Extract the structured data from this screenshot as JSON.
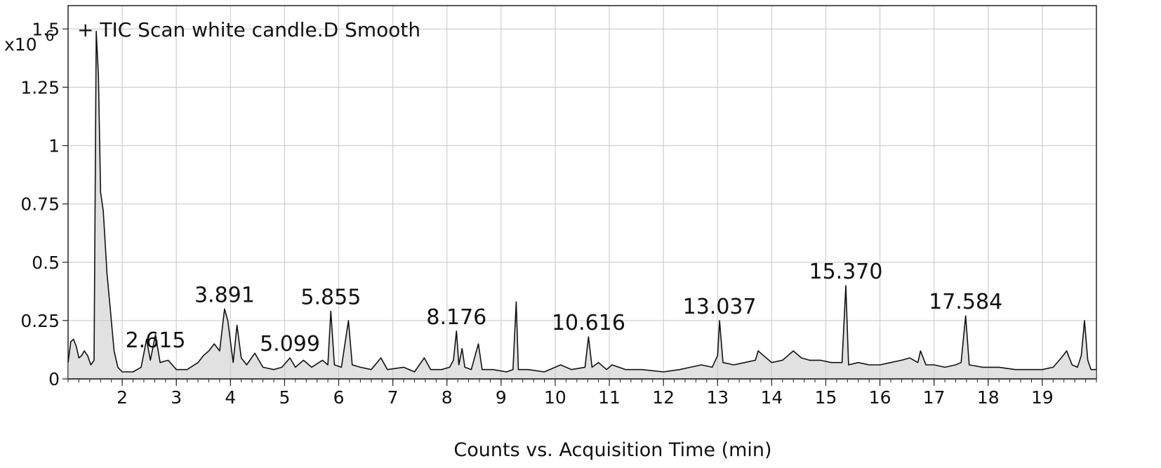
{
  "chart_data": {
    "type": "line",
    "title": "+ TIC Scan white candle.D  Smooth",
    "y_multiplier": "x10",
    "y_exponent": "6",
    "xlabel": "Counts vs. Acquisition Time (min)",
    "ylabel": "",
    "xlim": [
      1.0,
      20.0
    ],
    "ylim": [
      0,
      1.6
    ],
    "grid": true,
    "x_ticks": [
      2,
      3,
      4,
      5,
      6,
      7,
      8,
      9,
      10,
      11,
      12,
      13,
      14,
      15,
      16,
      17,
      18,
      19
    ],
    "y_ticks": [
      {
        "value": 0,
        "label": "0"
      },
      {
        "value": 0.25,
        "label": "0.25"
      },
      {
        "value": 0.5,
        "label": "0.5"
      },
      {
        "value": 0.75,
        "label": "0.75"
      },
      {
        "value": 1.0,
        "label": "1"
      },
      {
        "value": 1.25,
        "label": "1.25"
      },
      {
        "value": 1.5,
        "label": "1.5"
      }
    ],
    "peak_labels": [
      {
        "label": "2.615",
        "x": 2.615,
        "y": 0.105
      },
      {
        "label": "3.891",
        "x": 3.891,
        "y": 0.3
      },
      {
        "label": "5.099",
        "x": 5.099,
        "y": 0.09
      },
      {
        "label": "5.855",
        "x": 5.855,
        "y": 0.29
      },
      {
        "label": "8.176",
        "x": 8.176,
        "y": 0.205
      },
      {
        "label": "10.616",
        "x": 10.616,
        "y": 0.18
      },
      {
        "label": "13.037",
        "x": 13.037,
        "y": 0.25
      },
      {
        "label": "15.370",
        "x": 15.37,
        "y": 0.4
      },
      {
        "label": "17.584",
        "x": 17.584,
        "y": 0.27
      }
    ],
    "series": [
      {
        "baseline": [
          [
            1.0,
            0.07
          ],
          [
            1.05,
            0.16
          ],
          [
            1.1,
            0.17
          ],
          [
            1.15,
            0.14
          ],
          [
            1.2,
            0.09
          ],
          [
            1.25,
            0.1
          ],
          [
            1.3,
            0.12
          ],
          [
            1.36,
            0.1
          ],
          [
            1.42,
            0.06
          ],
          [
            1.48,
            0.08
          ],
          [
            1.52,
            1.49
          ],
          [
            1.56,
            1.3
          ],
          [
            1.6,
            0.8
          ],
          [
            1.65,
            0.72
          ],
          [
            1.72,
            0.45
          ],
          [
            1.78,
            0.3
          ],
          [
            1.85,
            0.12
          ],
          [
            1.92,
            0.05
          ],
          [
            2.0,
            0.03
          ],
          [
            2.2,
            0.03
          ],
          [
            2.35,
            0.05
          ],
          [
            2.45,
            0.17
          ],
          [
            2.52,
            0.08
          ],
          [
            2.615,
            0.19
          ],
          [
            2.7,
            0.07
          ],
          [
            2.85,
            0.08
          ],
          [
            3.0,
            0.04
          ],
          [
            3.2,
            0.04
          ],
          [
            3.4,
            0.07
          ],
          [
            3.5,
            0.1
          ],
          [
            3.6,
            0.12
          ],
          [
            3.7,
            0.15
          ],
          [
            3.8,
            0.12
          ],
          [
            3.891,
            0.3
          ],
          [
            3.95,
            0.25
          ],
          [
            4.05,
            0.07
          ],
          [
            4.12,
            0.23
          ],
          [
            4.2,
            0.09
          ],
          [
            4.3,
            0.06
          ],
          [
            4.45,
            0.11
          ],
          [
            4.6,
            0.05
          ],
          [
            4.8,
            0.04
          ],
          [
            4.95,
            0.05
          ],
          [
            5.099,
            0.09
          ],
          [
            5.2,
            0.05
          ],
          [
            5.35,
            0.08
          ],
          [
            5.5,
            0.05
          ],
          [
            5.7,
            0.08
          ],
          [
            5.8,
            0.06
          ],
          [
            5.855,
            0.29
          ],
          [
            5.92,
            0.06
          ],
          [
            6.05,
            0.05
          ],
          [
            6.18,
            0.25
          ],
          [
            6.25,
            0.06
          ],
          [
            6.4,
            0.05
          ],
          [
            6.6,
            0.04
          ],
          [
            6.78,
            0.09
          ],
          [
            6.9,
            0.04
          ],
          [
            7.2,
            0.05
          ],
          [
            7.4,
            0.03
          ],
          [
            7.58,
            0.09
          ],
          [
            7.7,
            0.04
          ],
          [
            7.9,
            0.04
          ],
          [
            8.05,
            0.05
          ],
          [
            8.12,
            0.08
          ],
          [
            8.176,
            0.205
          ],
          [
            8.22,
            0.06
          ],
          [
            8.28,
            0.13
          ],
          [
            8.33,
            0.05
          ],
          [
            8.45,
            0.04
          ],
          [
            8.58,
            0.15
          ],
          [
            8.65,
            0.04
          ],
          [
            8.85,
            0.04
          ],
          [
            9.1,
            0.03
          ],
          [
            9.22,
            0.04
          ],
          [
            9.28,
            0.33
          ],
          [
            9.32,
            0.04
          ],
          [
            9.5,
            0.04
          ],
          [
            9.8,
            0.03
          ],
          [
            10.1,
            0.06
          ],
          [
            10.3,
            0.04
          ],
          [
            10.55,
            0.05
          ],
          [
            10.616,
            0.18
          ],
          [
            10.68,
            0.05
          ],
          [
            10.8,
            0.07
          ],
          [
            10.95,
            0.04
          ],
          [
            11.05,
            0.06
          ],
          [
            11.3,
            0.04
          ],
          [
            11.6,
            0.04
          ],
          [
            12.0,
            0.03
          ],
          [
            12.3,
            0.04
          ],
          [
            12.5,
            0.05
          ],
          [
            12.7,
            0.06
          ],
          [
            12.9,
            0.05
          ],
          [
            13.0,
            0.1
          ],
          [
            13.037,
            0.25
          ],
          [
            13.1,
            0.07
          ],
          [
            13.3,
            0.06
          ],
          [
            13.5,
            0.07
          ],
          [
            13.7,
            0.08
          ],
          [
            13.75,
            0.12
          ],
          [
            13.85,
            0.1
          ],
          [
            14.0,
            0.07
          ],
          [
            14.2,
            0.08
          ],
          [
            14.4,
            0.12
          ],
          [
            14.55,
            0.09
          ],
          [
            14.7,
            0.08
          ],
          [
            14.9,
            0.08
          ],
          [
            15.1,
            0.07
          ],
          [
            15.3,
            0.07
          ],
          [
            15.37,
            0.4
          ],
          [
            15.42,
            0.06
          ],
          [
            15.6,
            0.07
          ],
          [
            15.8,
            0.06
          ],
          [
            16.0,
            0.06
          ],
          [
            16.2,
            0.07
          ],
          [
            16.4,
            0.08
          ],
          [
            16.55,
            0.09
          ],
          [
            16.7,
            0.07
          ],
          [
            16.75,
            0.12
          ],
          [
            16.85,
            0.06
          ],
          [
            17.0,
            0.06
          ],
          [
            17.2,
            0.05
          ],
          [
            17.4,
            0.06
          ],
          [
            17.5,
            0.07
          ],
          [
            17.584,
            0.27
          ],
          [
            17.65,
            0.06
          ],
          [
            17.9,
            0.05
          ],
          [
            18.2,
            0.05
          ],
          [
            18.5,
            0.04
          ],
          [
            18.8,
            0.04
          ],
          [
            19.0,
            0.04
          ],
          [
            19.2,
            0.05
          ],
          [
            19.35,
            0.09
          ],
          [
            19.45,
            0.12
          ],
          [
            19.55,
            0.06
          ],
          [
            19.65,
            0.05
          ],
          [
            19.72,
            0.1
          ],
          [
            19.78,
            0.25
          ],
          [
            19.84,
            0.08
          ],
          [
            19.9,
            0.04
          ],
          [
            20.0,
            0.04
          ]
        ]
      }
    ]
  }
}
